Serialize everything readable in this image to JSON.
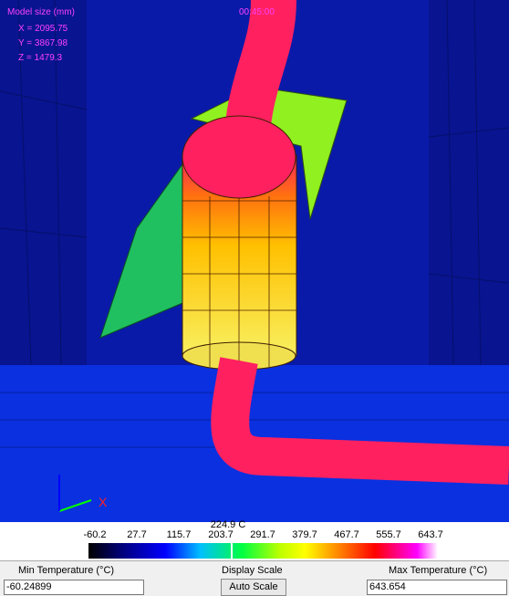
{
  "viewport": {
    "model_size": "Model size (mm)",
    "x": "X = 2095.75",
    "y": "Y = 3867.98",
    "z": "Z = 1479.3",
    "time": "00:45:00",
    "axis": "X"
  },
  "color_scale": {
    "cursor": "224.9 C",
    "ticks": [
      "-60.2",
      "27.7",
      "115.7",
      "203.7",
      "291.7",
      "379.7",
      "467.7",
      "555.7",
      "643.7"
    ]
  },
  "controls": {
    "min_label": "Min Temperature (°C)",
    "min_value": "-60.24899",
    "display_label": "Display Scale",
    "button": "Auto Scale",
    "max_label": "Max Temperature (°C)",
    "max_value": "643.654"
  }
}
